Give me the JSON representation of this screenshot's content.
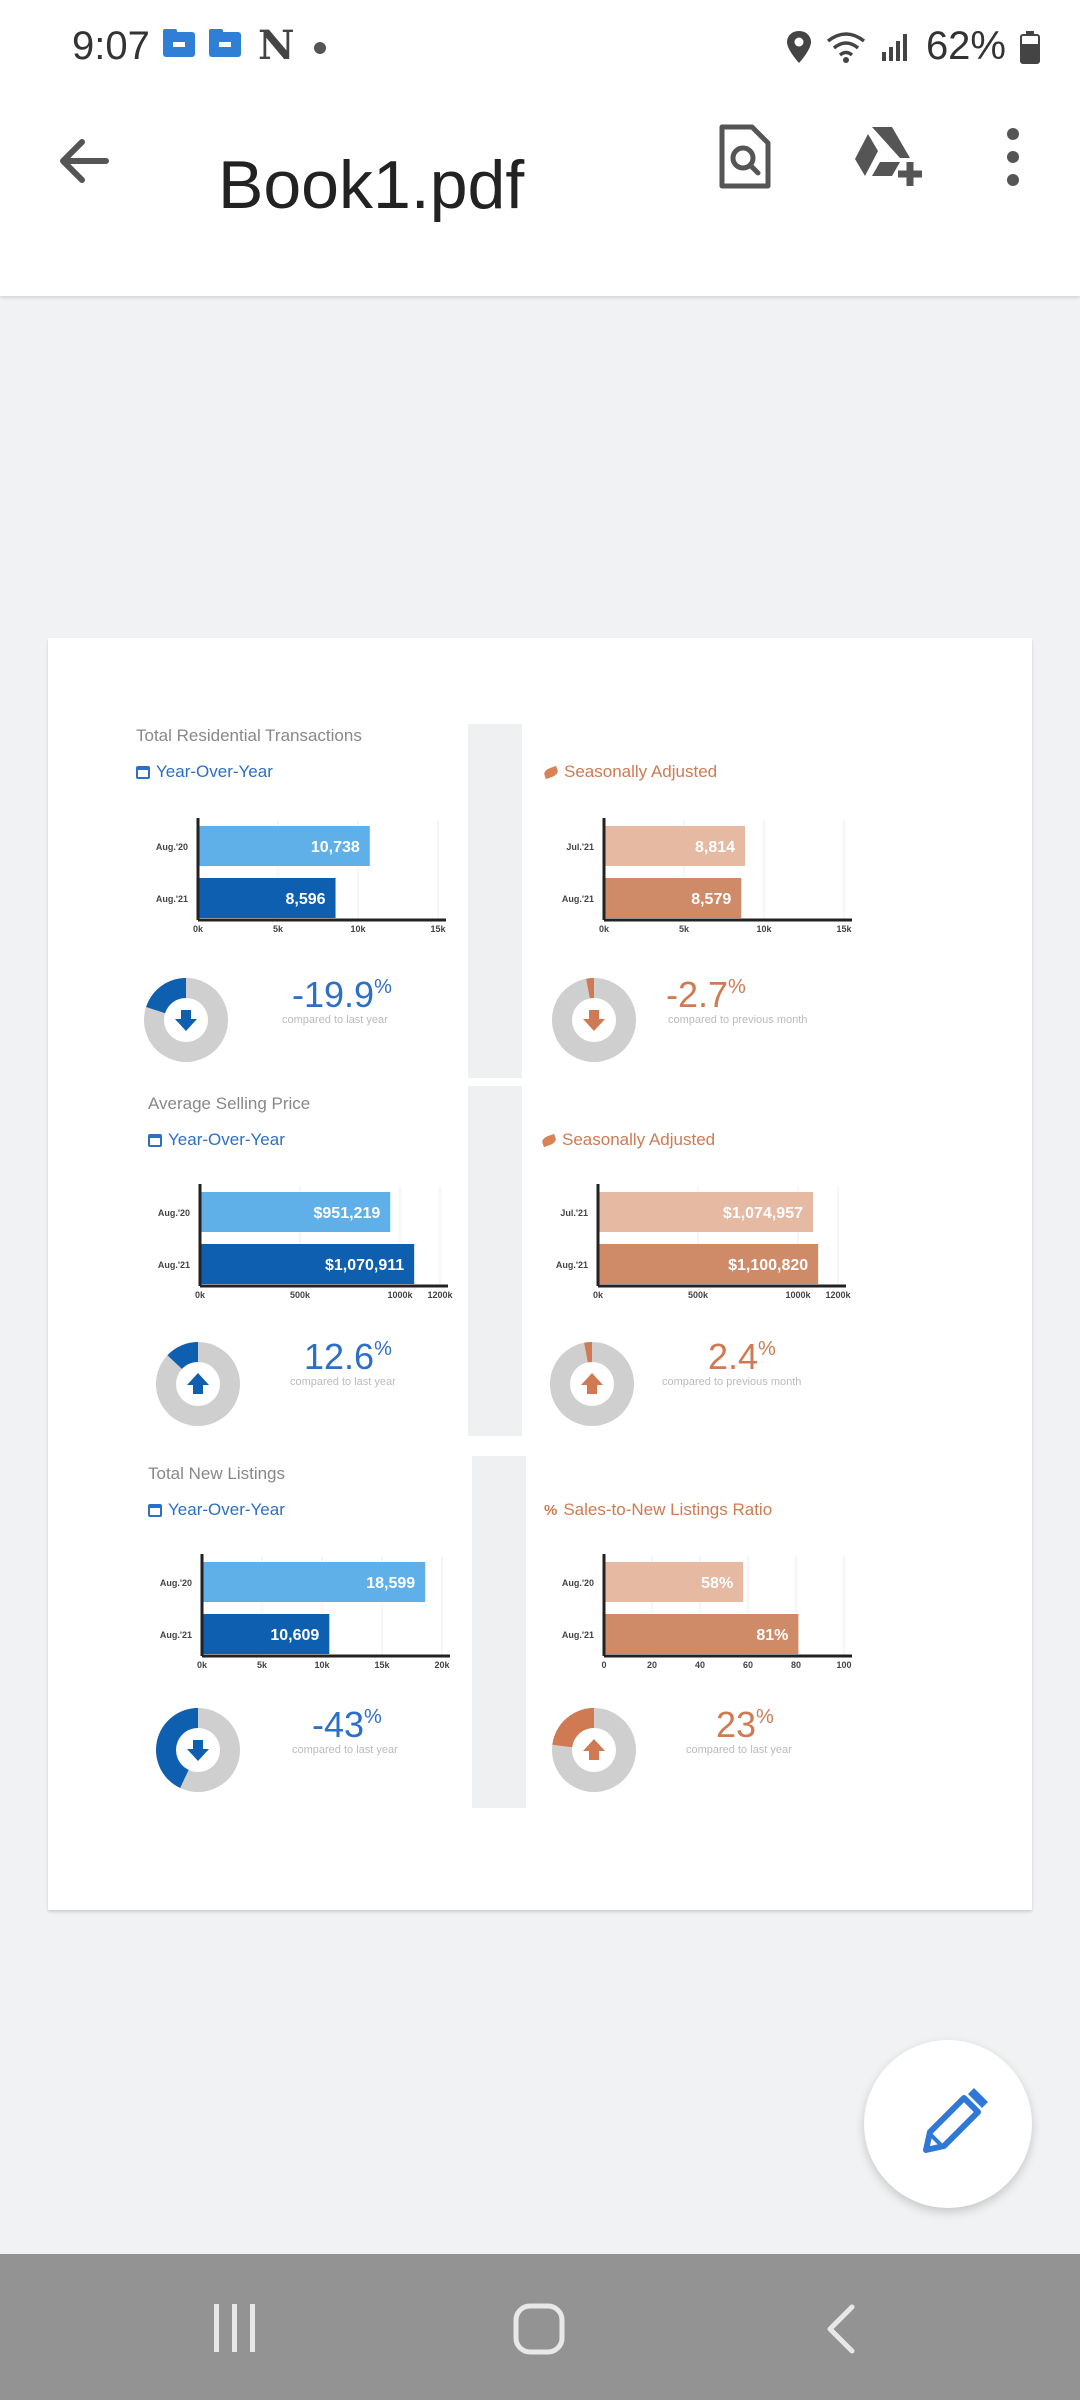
{
  "status_bar": {
    "time": "9:07",
    "notif_letter": "N",
    "battery": "62%"
  },
  "app_bar": {
    "title": "Book1.pdf"
  },
  "panels": [
    {
      "id": "trans-yoy",
      "title": "Total Residential Transactions",
      "subtitle": "Year-Over-Year",
      "theme": "blue",
      "pct": "-19.9",
      "pct_sign": "%",
      "compare": "compared to last year",
      "direction": "down",
      "donut_fraction": 0.2,
      "chart_data": {
        "type": "bar",
        "categories": [
          "Aug.'20",
          "Aug.'21"
        ],
        "values": [
          10738,
          8596
        ],
        "labels": [
          "10,738",
          "8,596"
        ],
        "xlim": [
          0,
          15000
        ],
        "ticks": [
          "0k",
          "5k",
          "10k",
          "15k"
        ]
      }
    },
    {
      "id": "trans-sa",
      "title": "",
      "subtitle": "Seasonally Adjusted",
      "theme": "orange",
      "pct": "-2.7",
      "pct_sign": "%",
      "compare": "compared to previous month",
      "direction": "down",
      "donut_fraction": 0.03,
      "chart_data": {
        "type": "bar",
        "categories": [
          "Jul.'21",
          "Aug.'21"
        ],
        "values": [
          8814,
          8579
        ],
        "labels": [
          "8,814",
          "8,579"
        ],
        "xlim": [
          0,
          15000
        ],
        "ticks": [
          "0k",
          "5k",
          "10k",
          "15k"
        ]
      }
    },
    {
      "id": "price-yoy",
      "title": "Average Selling Price",
      "subtitle": "Year-Over-Year",
      "theme": "blue",
      "pct": "12.6",
      "pct_sign": "%",
      "compare": "compared to last year",
      "direction": "up",
      "donut_fraction": 0.13,
      "chart_data": {
        "type": "bar",
        "categories": [
          "Aug.'20",
          "Aug.'21"
        ],
        "values": [
          951219,
          1070911
        ],
        "labels": [
          "$951,219",
          "$1,070,911"
        ],
        "xlim": [
          0,
          1200000
        ],
        "ticks": [
          "0k",
          "500k",
          "1000k",
          "1200k"
        ],
        "tick_values": [
          0,
          500000,
          1000000,
          1200000
        ]
      }
    },
    {
      "id": "price-sa",
      "title": "",
      "subtitle": "Seasonally Adjusted",
      "theme": "orange",
      "pct": "2.4",
      "pct_sign": "%",
      "compare": "compared to previous month",
      "direction": "up",
      "donut_fraction": 0.03,
      "chart_data": {
        "type": "bar",
        "categories": [
          "Jul.'21",
          "Aug.'21"
        ],
        "values": [
          1074957,
          1100820
        ],
        "labels": [
          "$1,074,957",
          "$1,100,820"
        ],
        "xlim": [
          0,
          1200000
        ],
        "ticks": [
          "0k",
          "500k",
          "1000k",
          "1200k"
        ],
        "tick_values": [
          0,
          500000,
          1000000,
          1200000
        ]
      }
    },
    {
      "id": "listings-yoy",
      "title": "Total New Listings",
      "subtitle": "Year-Over-Year",
      "theme": "blue",
      "pct": "-43",
      "pct_sign": "%",
      "compare": "compared to last year",
      "direction": "down",
      "donut_fraction": 0.43,
      "chart_data": {
        "type": "bar",
        "categories": [
          "Aug.'20",
          "Aug.'21"
        ],
        "values": [
          18599,
          10609
        ],
        "labels": [
          "18,599",
          "10,609"
        ],
        "xlim": [
          0,
          20000
        ],
        "ticks": [
          "0k",
          "5k",
          "10k",
          "15k",
          "20k"
        ]
      }
    },
    {
      "id": "sales-ratio",
      "title": "",
      "subtitle": "Sales-to-New Listings Ratio",
      "theme": "orange",
      "pct": "23",
      "pct_sign": "%",
      "compare": "compared to last year",
      "direction": "up",
      "donut_fraction": 0.23,
      "chart_data": {
        "type": "bar",
        "categories": [
          "Aug.'20",
          "Aug.'21"
        ],
        "values": [
          58,
          81
        ],
        "labels": [
          "58%",
          "81%"
        ],
        "xlim": [
          0,
          100
        ],
        "ticks": [
          "0",
          "20",
          "40",
          "60",
          "80",
          "100"
        ]
      }
    }
  ],
  "colors": {
    "blue_light": "#5fb0e8",
    "blue_dark": "#0f5fb0",
    "blue_accent": "#2c6fc6",
    "orange_light": "#e6b9a3",
    "orange_dark": "#cf8a68",
    "orange_accent": "#cf7a52",
    "donut_grey": "#cfcfcf"
  },
  "icons": {
    "app_bar": [
      "back-arrow-icon",
      "search-document-icon",
      "drive-add-icon",
      "more-vert-icon"
    ],
    "fab": "pencil-icon",
    "navbar": [
      "recents-icon",
      "home-icon",
      "back-icon"
    ]
  }
}
